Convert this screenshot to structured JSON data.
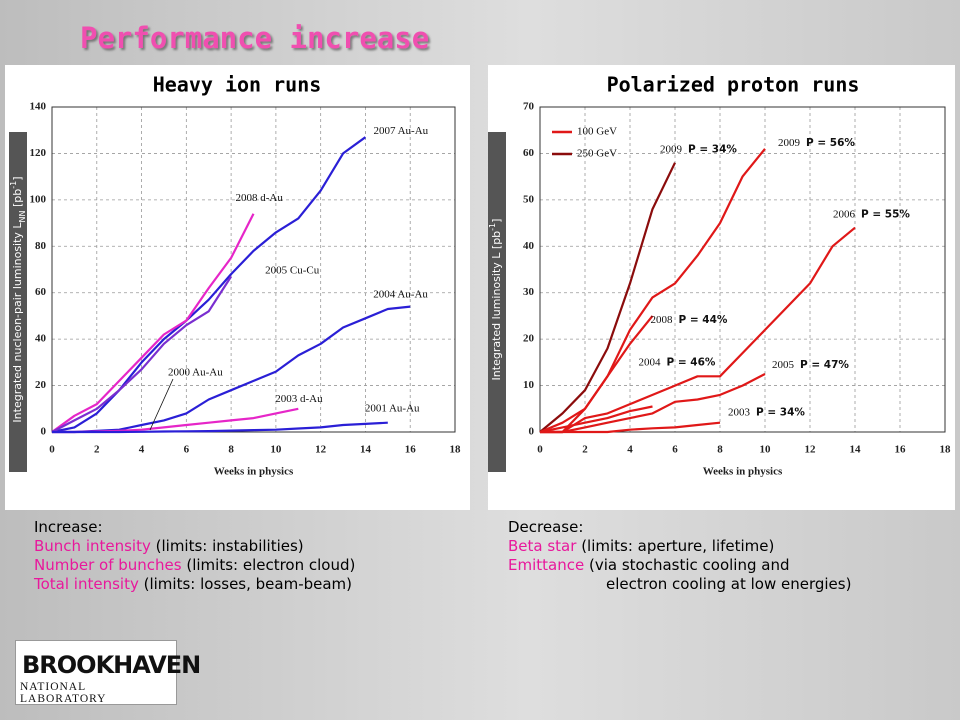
{
  "title": "Performance increase",
  "chart_data": [
    {
      "type": "line",
      "title": "Heavy ion runs",
      "xlabel": "Weeks in physics",
      "ylabel": [
        {
          "text": "Integrated nucleon-pair luminosity L"
        },
        {
          "text": "NN",
          "shift": "sub"
        },
        {
          "text": " [pb"
        },
        {
          "text": "-1",
          "shift": "super"
        },
        {
          "text": "]"
        }
      ],
      "x": [
        0,
        1,
        2,
        3,
        4,
        5,
        6,
        7,
        8,
        9,
        10,
        11,
        12,
        13,
        14,
        15,
        16
      ],
      "xlim": [
        0,
        18
      ],
      "xticks": [
        0,
        2,
        4,
        6,
        8,
        10,
        12,
        14,
        16,
        18
      ],
      "ylim": [
        0,
        140
      ],
      "yticks": [
        0,
        20,
        40,
        60,
        80,
        100,
        120,
        140
      ],
      "grid": true,
      "series": [
        {
          "name": "2007 Au-Au",
          "color": "#2a1fd6",
          "values": [
            0,
            2,
            8,
            18,
            30,
            40,
            48,
            57,
            68,
            78,
            86,
            92,
            104,
            120,
            127,
            null,
            null
          ]
        },
        {
          "name": "2008 d-Au",
          "color": "#e626c8",
          "values": [
            0,
            7,
            12,
            22,
            32,
            42,
            48,
            62,
            75,
            94,
            null,
            null,
            null,
            null,
            null,
            null,
            null
          ]
        },
        {
          "name": "2005 Cu-Cu",
          "color": "#7a2ed0",
          "values": [
            0,
            5,
            10,
            18,
            27,
            38,
            46,
            52,
            67,
            null,
            null,
            null,
            null,
            null,
            null,
            null,
            null
          ]
        },
        {
          "name": "2004 Au-Au",
          "color": "#2a1fd6",
          "values": [
            0,
            0,
            0.5,
            1,
            3,
            5,
            8,
            14,
            18,
            22,
            26,
            33,
            38,
            45,
            49,
            53,
            54
          ]
        },
        {
          "name": "2003 d-Au",
          "color": "#e626c8",
          "values": [
            0,
            0,
            0.2,
            0.5,
            1,
            2,
            3,
            4,
            5,
            6,
            8,
            10,
            null,
            null,
            null,
            null,
            null
          ]
        },
        {
          "name": "2001 Au-Au",
          "color": "#2a1fd6",
          "values": [
            0,
            0,
            0,
            0,
            0.1,
            0.2,
            0.3,
            0.4,
            0.6,
            0.8,
            1,
            1.5,
            2,
            3,
            3.5,
            4,
            null
          ]
        }
      ],
      "annotations": [
        "2000 Au-Au"
      ]
    },
    {
      "type": "line",
      "title": "Polarized proton runs",
      "xlabel": "Weeks in physics",
      "ylabel": [
        {
          "text": "Integrated luminosity L [pb"
        },
        {
          "text": "-1",
          "shift": "super"
        },
        {
          "text": "]"
        }
      ],
      "x": [
        0,
        1,
        2,
        3,
        4,
        5,
        6,
        7,
        8,
        9,
        10,
        11,
        12,
        13,
        14
      ],
      "xlim": [
        0,
        18
      ],
      "xticks": [
        0,
        2,
        4,
        6,
        8,
        10,
        12,
        14,
        16,
        18
      ],
      "ylim": [
        0,
        70
      ],
      "yticks": [
        0,
        10,
        20,
        30,
        40,
        50,
        60,
        70
      ],
      "grid": true,
      "legend": [
        {
          "name": "100 GeV",
          "color": "#e01818"
        },
        {
          "name": "250 GeV",
          "color": "#8b0c0c"
        }
      ],
      "legend_position": "upper left",
      "series": [
        {
          "name": "2009",
          "polarization": "P = 34%",
          "color": "#8b0c0c",
          "values": [
            0,
            4,
            9,
            18,
            32,
            48,
            58,
            null,
            null,
            null,
            null,
            null,
            null,
            null,
            null
          ]
        },
        {
          "name": "2009",
          "polarization": "P = 56%",
          "color": "#e01818",
          "values": [
            0,
            0,
            5,
            12,
            22,
            29,
            32,
            38,
            45,
            55,
            61,
            null,
            null,
            null,
            null
          ]
        },
        {
          "name": "2006",
          "polarization": "P = 55%",
          "color": "#e01818",
          "values": [
            0,
            0,
            3,
            4,
            6,
            8,
            10,
            12,
            12,
            17,
            22,
            27,
            32,
            40,
            44
          ]
        },
        {
          "name": "2008",
          "polarization": "P = 44%",
          "color": "#e01818",
          "values": [
            0,
            2,
            5,
            12,
            19,
            25,
            null,
            null,
            null,
            null,
            null,
            null,
            null,
            null,
            null
          ]
        },
        {
          "name": "2005",
          "polarization": "P = 47%",
          "color": "#e01818",
          "values": [
            0,
            0,
            1,
            2,
            3,
            4,
            6.5,
            7,
            8,
            10,
            12.5,
            null,
            null,
            null,
            null
          ]
        },
        {
          "name": "2004",
          "polarization": "P = 46%",
          "color": "#e01818",
          "values": [
            0,
            1,
            2,
            3,
            4.5,
            5.5,
            null,
            null,
            null,
            null,
            null,
            null,
            null,
            null,
            null
          ]
        },
        {
          "name": "2003",
          "polarization": "P = 34%",
          "color": "#e01818",
          "values": [
            0,
            0,
            0,
            0,
            0.5,
            0.8,
            1,
            1.5,
            2,
            null,
            null,
            null,
            null,
            null,
            null
          ]
        }
      ]
    }
  ],
  "notes": [
    {
      "heading": "Increase:",
      "items": [
        {
          "key": "Bunch intensity",
          "rest": " (limits: instabilities)"
        },
        {
          "key": "Number of bunches",
          "rest": " (limits: electron cloud)"
        },
        {
          "key": "Total intensity",
          "rest": " (limits: losses, beam-beam)"
        }
      ]
    },
    {
      "heading": "Decrease:",
      "items": [
        {
          "key": "Beta star",
          "rest": " (limits: aperture, lifetime)"
        },
        {
          "key": "Emittance",
          "rest": " (via stochastic cooling and"
        },
        {
          "key": "",
          "rest": "electron cooling at low energies)"
        }
      ]
    }
  ],
  "logo": {
    "name": "BROOKHAVEN",
    "sub": "NATIONAL LABORATORY"
  }
}
